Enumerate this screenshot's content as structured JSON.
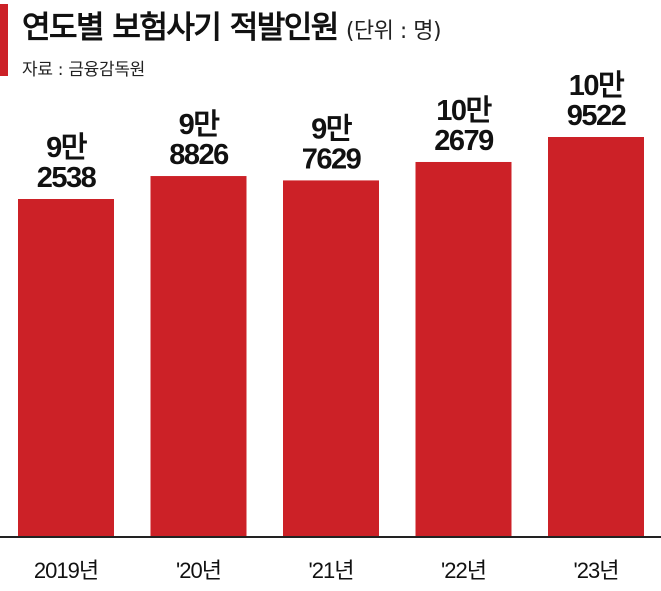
{
  "header": {
    "title": "연도별 보험사기 적발인원",
    "unit": "(단위 : 명)",
    "source": "자료 : 금융감독원"
  },
  "colors": {
    "bar": "#cc2127",
    "accent": "#cc2127",
    "text": "#111111",
    "axis": "#222222"
  },
  "chart_data": {
    "type": "bar",
    "title": "연도별 보험사기 적발인원",
    "unit": "(단위 : 명)",
    "categories": [
      "2019년",
      "'20년",
      "'21년",
      "'22년",
      "'23년"
    ],
    "values": [
      92538,
      98826,
      97629,
      102679,
      109522
    ],
    "data_labels": [
      [
        "9만",
        "2538"
      ],
      [
        "9만",
        "8826"
      ],
      [
        "9만",
        "7629"
      ],
      [
        "10만",
        "2679"
      ],
      [
        "10만",
        "9522"
      ]
    ],
    "grid": false,
    "legend": "none"
  }
}
